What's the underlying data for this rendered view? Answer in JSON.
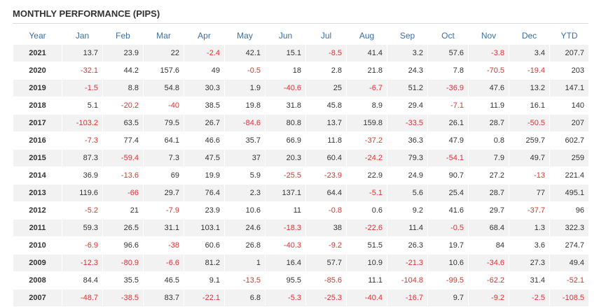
{
  "header": {
    "title": "MONTHLY PERFORMANCE (PIPS)"
  },
  "table": {
    "columns": [
      "Year",
      "Jan",
      "Feb",
      "Mar",
      "Apr",
      "May",
      "Jun",
      "Jul",
      "Aug",
      "Sep",
      "Oct",
      "Nov",
      "Dec",
      "YTD"
    ],
    "rows": [
      [
        "2021",
        "13.7",
        "23.9",
        "22",
        "-2.4",
        "42.1",
        "15.1",
        "-8.5",
        "41.4",
        "3.2",
        "57.6",
        "-3.8",
        "3.4",
        "207.7"
      ],
      [
        "2020",
        "-32.1",
        "44.2",
        "157.6",
        "49",
        "-0.5",
        "18",
        "2.8",
        "21.8",
        "24.3",
        "7.8",
        "-70.5",
        "-19.4",
        "203"
      ],
      [
        "2019",
        "-1.5",
        "8.8",
        "54.8",
        "30.3",
        "1.9",
        "-40.6",
        "25",
        "-6.7",
        "51.2",
        "-36.9",
        "47.6",
        "13.2",
        "147.1"
      ],
      [
        "2018",
        "5.1",
        "-20.2",
        "-40",
        "38.5",
        "19.8",
        "31.8",
        "45.8",
        "8.9",
        "29.4",
        "-7.1",
        "11.9",
        "16.1",
        "140"
      ],
      [
        "2017",
        "-103.2",
        "63.5",
        "79.5",
        "26.7",
        "-84.6",
        "80.8",
        "13.7",
        "159.8",
        "-33.5",
        "26.1",
        "28.7",
        "-50.5",
        "207"
      ],
      [
        "2016",
        "-7.3",
        "77.4",
        "64.1",
        "46.6",
        "35.7",
        "66.9",
        "11.8",
        "-37.2",
        "36.3",
        "47.9",
        "0.8",
        "259.7",
        "602.7"
      ],
      [
        "2015",
        "87.3",
        "-59.4",
        "7.3",
        "47.5",
        "37",
        "20.3",
        "60.4",
        "-24.2",
        "79.3",
        "-54.1",
        "7.9",
        "49.7",
        "259"
      ],
      [
        "2014",
        "36.9",
        "-13.6",
        "69",
        "19.9",
        "5.9",
        "-25.5",
        "-23.9",
        "22.9",
        "24.9",
        "90.7",
        "27.2",
        "-13",
        "221.4"
      ],
      [
        "2013",
        "119.6",
        "-66",
        "29.7",
        "76.4",
        "2.3",
        "137.1",
        "64.4",
        "-5.1",
        "5.6",
        "25.4",
        "28.7",
        "77",
        "495.1"
      ],
      [
        "2012",
        "-5.2",
        "21",
        "-7.9",
        "23.9",
        "10.6",
        "11",
        "-0.8",
        "0.6",
        "9.2",
        "41.6",
        "29.7",
        "-37.7",
        "96"
      ],
      [
        "2011",
        "59.3",
        "26.5",
        "31.1",
        "103.1",
        "24.6",
        "-18.3",
        "38",
        "-22.6",
        "11.4",
        "-0.5",
        "68.4",
        "1.3",
        "322.3"
      ],
      [
        "2010",
        "-6.9",
        "96.6",
        "-38",
        "60.6",
        "26.8",
        "-40.3",
        "-9.2",
        "51.5",
        "26.3",
        "19.7",
        "84",
        "3.6",
        "274.7"
      ],
      [
        "2009",
        "-12.3",
        "-80.9",
        "-6.6",
        "81.2",
        "1",
        "16.4",
        "57.7",
        "10.9",
        "-21.3",
        "10.6",
        "-34.6",
        "27.3",
        "49.4"
      ],
      [
        "2008",
        "84.4",
        "35.5",
        "46.5",
        "9.1",
        "-13.5",
        "95.5",
        "-85.6",
        "11.1",
        "-104.8",
        "-99.5",
        "-62.2",
        "31.4",
        "-52.1"
      ],
      [
        "2007",
        "-48.7",
        "-38.5",
        "83.7",
        "-22.1",
        "6.8",
        "-5.3",
        "-25.3",
        "-40.4",
        "-16.7",
        "9.7",
        "-9.2",
        "-2.5",
        "-108.5"
      ]
    ]
  }
}
